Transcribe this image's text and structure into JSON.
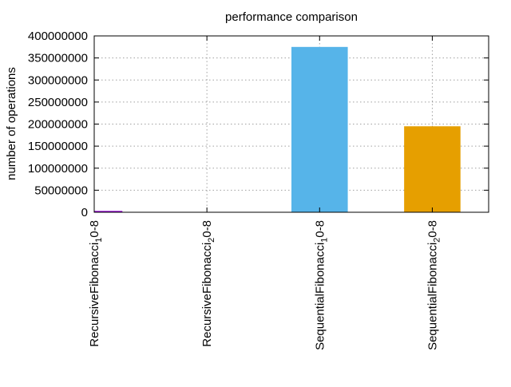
{
  "chart_data": {
    "type": "bar",
    "title": "performance comparison",
    "xlabel": "",
    "ylabel": "number of operations",
    "categories": [
      {
        "base": "RecursiveFibonacci",
        "sub": "1",
        "suffix": "0-8"
      },
      {
        "base": "RecursiveFibonacci",
        "sub": "2",
        "suffix": "0-8"
      },
      {
        "base": "SequentialFibonacci",
        "sub": "1",
        "suffix": "0-8"
      },
      {
        "base": "SequentialFibonacci",
        "sub": "2",
        "suffix": "0-8"
      }
    ],
    "values": [
      3000000,
      0,
      375000000,
      195000000
    ],
    "colors": [
      "#9400D3",
      "#009E73",
      "#56B4E9",
      "#E69F00"
    ],
    "ylim": [
      0,
      400000000
    ],
    "yticks": [
      0,
      50000000,
      100000000,
      150000000,
      200000000,
      250000000,
      300000000,
      350000000,
      400000000
    ],
    "ytick_labels": [
      "0",
      "50000000",
      "100000000",
      "150000000",
      "200000000",
      "250000000",
      "300000000",
      "350000000",
      "400000000"
    ],
    "grid": true,
    "legend": "none"
  }
}
